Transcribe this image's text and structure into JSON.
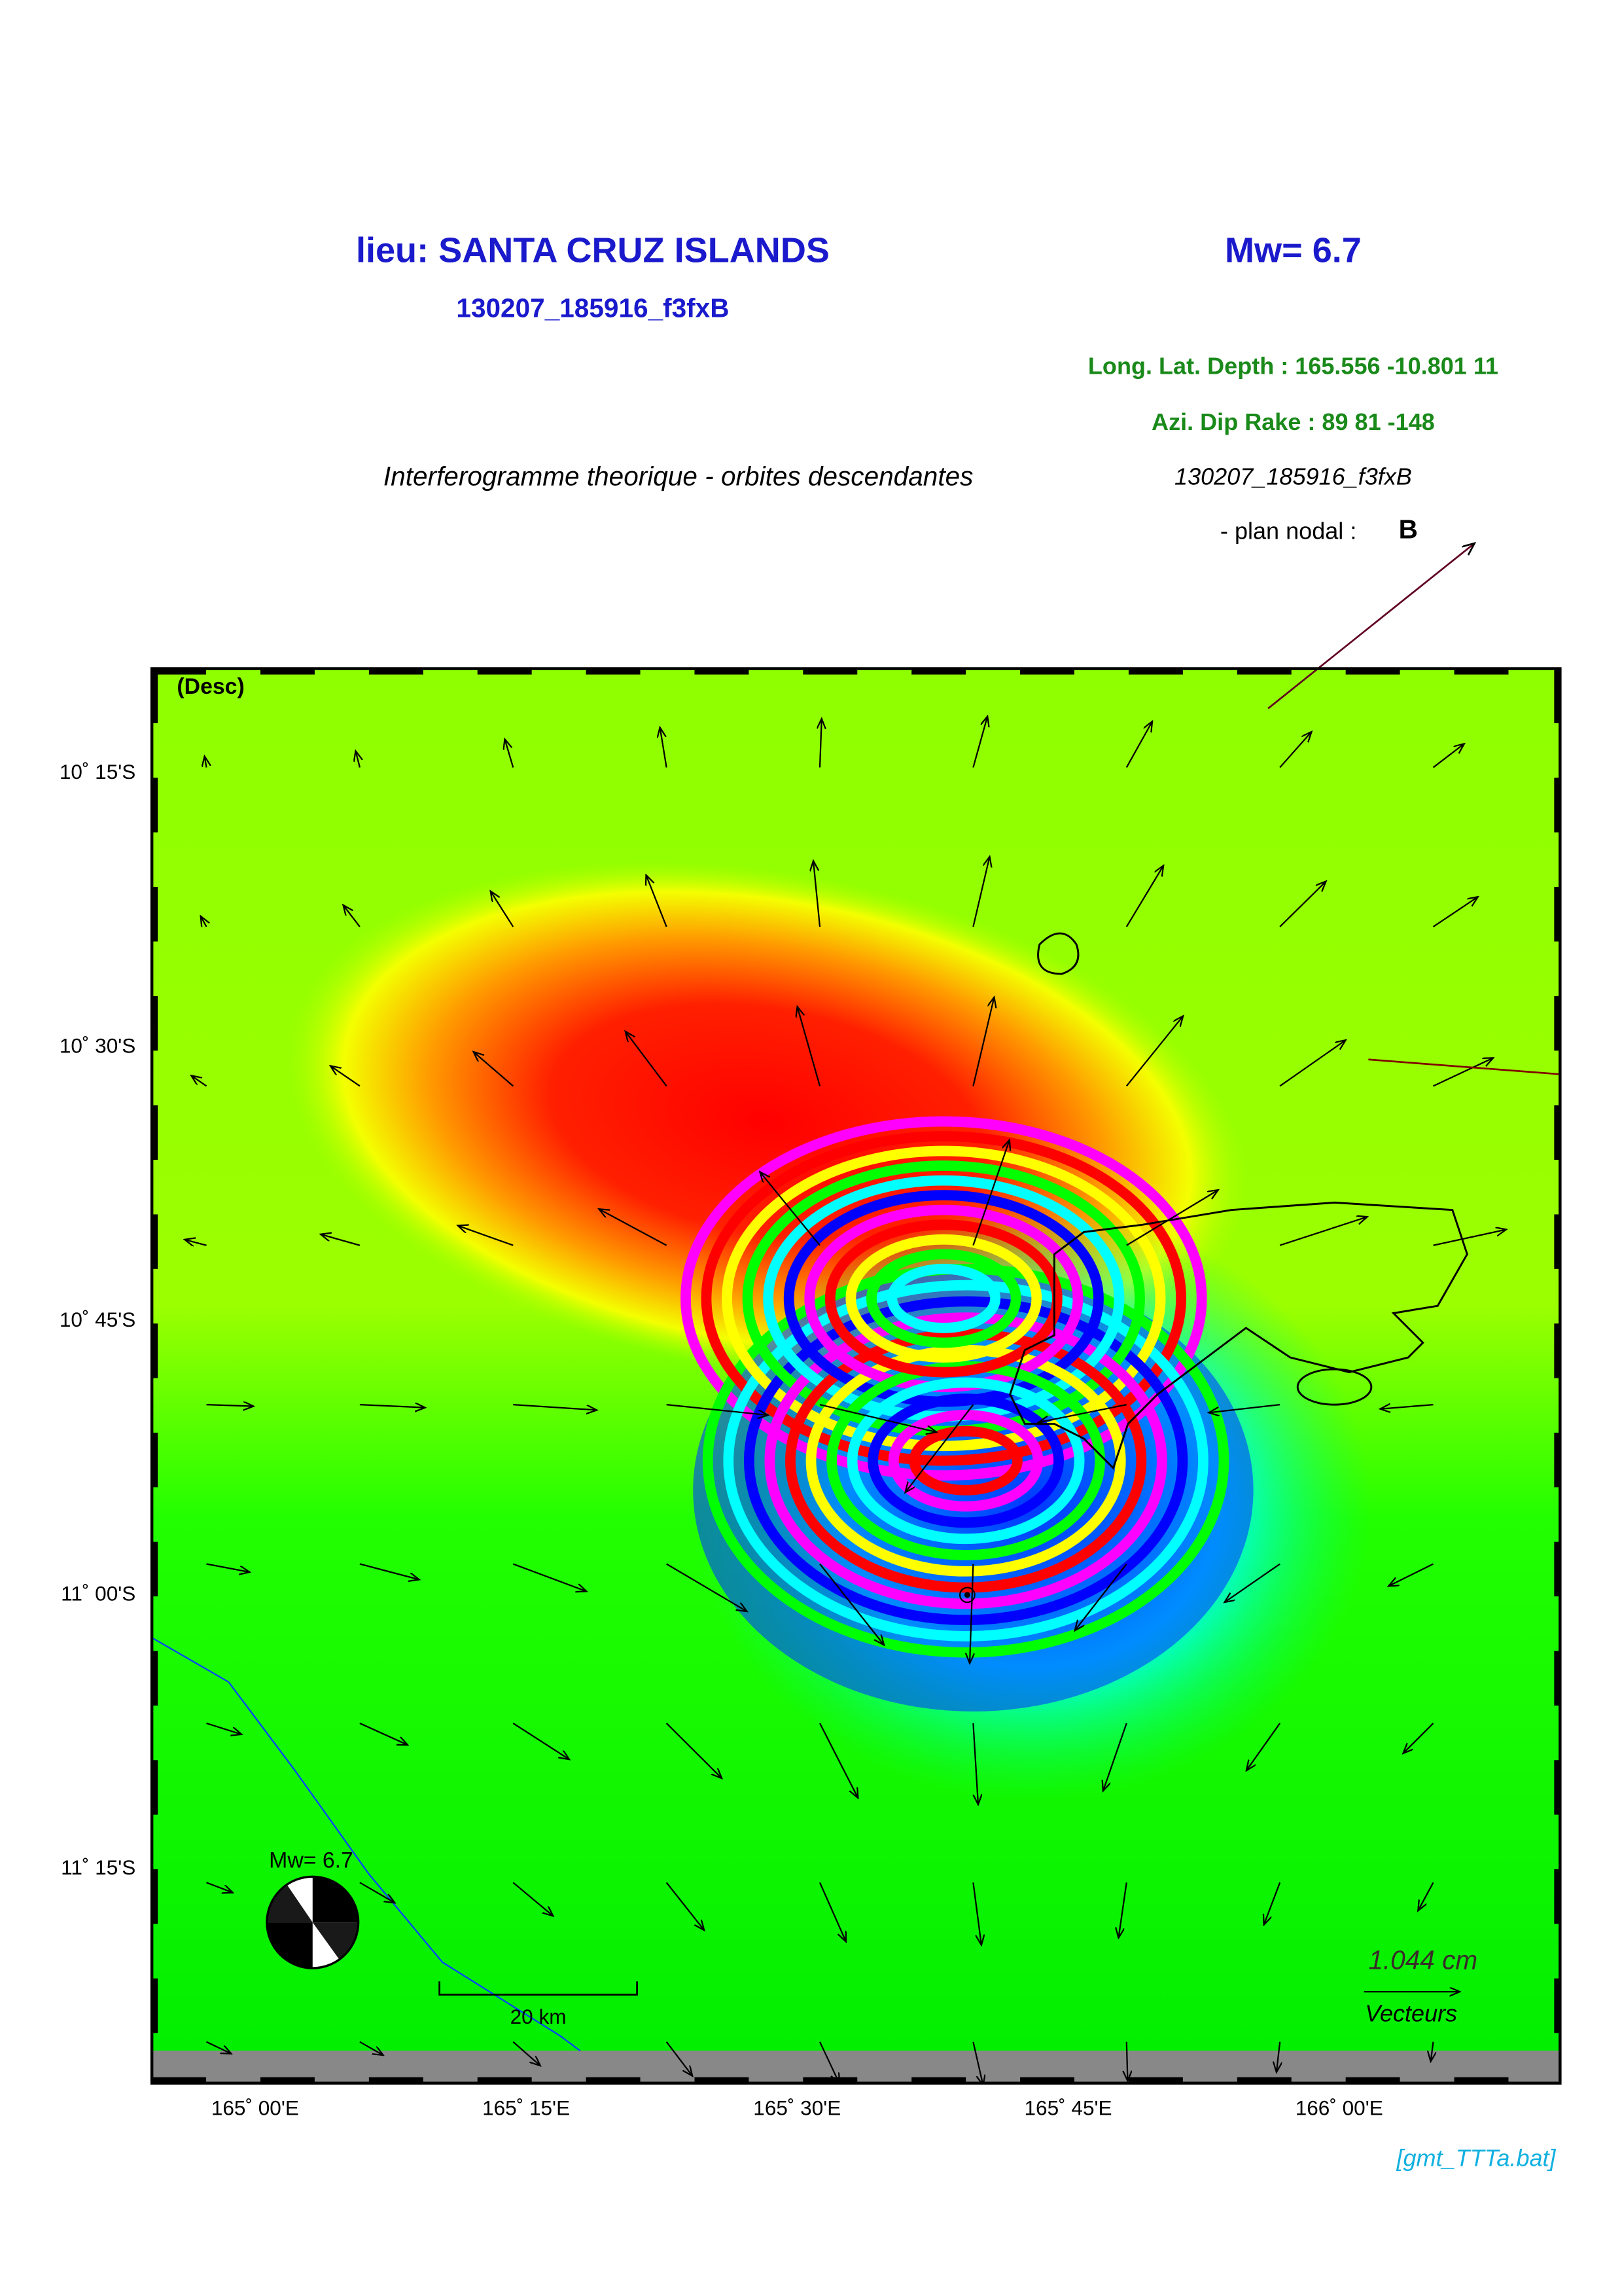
{
  "header": {
    "title": "lieu: SANTA CRUZ ISLANDS",
    "magnitude": "Mw= 6.7",
    "event_id": "130207_185916_f3fxB",
    "location": "Long. Lat. Depth : 165.556 -10.801 11",
    "mechanism": "Azi.  Dip   Rake :  89 81 -148",
    "subtitle": "Interferogramme theorique - orbites descendantes",
    "event_id_italic": "130207_185916_f3fxB",
    "nodal_label": "- plan nodal :",
    "nodal_value": "B"
  },
  "map": {
    "mode_label": "(Desc)",
    "y_labels": [
      "10˚ 15'S",
      "10˚ 30'S",
      "10˚ 45'S",
      "11˚ 00'S",
      "11˚ 15'S"
    ],
    "x_labels": [
      "165˚ 00'E",
      "165˚ 15'E",
      "165˚ 30'E",
      "165˚ 45'E",
      "166˚ 00'E"
    ],
    "beachball_label": "Mw= 6.7",
    "scale_label": "20 km",
    "vector_scale": "1.044  cm",
    "vector_label": "Vecteurs"
  },
  "footer": {
    "script": "[gmt_TTTa.bat]"
  }
}
